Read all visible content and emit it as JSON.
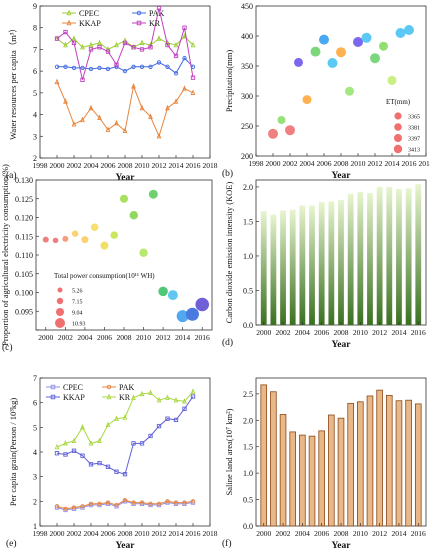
{
  "chart_data": [
    {
      "id": "a",
      "type": "line",
      "panel_label": "(a)",
      "xlabel": "Year",
      "ylabel": "Water resources per capita（m³）",
      "xlim": [
        1998,
        2018
      ],
      "ylim": [
        2,
        9
      ],
      "xticks": [
        1998,
        2000,
        2002,
        2004,
        2006,
        2008,
        2010,
        2012,
        2014,
        2016,
        2018
      ],
      "yticks": [
        2,
        3,
        4,
        5,
        6,
        7,
        8,
        9
      ],
      "legend_position": "top",
      "x": [
        2000,
        2001,
        2002,
        2003,
        2004,
        2005,
        2006,
        2007,
        2008,
        2009,
        2010,
        2011,
        2012,
        2013,
        2014,
        2015,
        2016
      ],
      "series": [
        {
          "name": "CPEC",
          "color": "#9ACD32",
          "marker": "triangle",
          "values": [
            7.5,
            7.2,
            7.5,
            7.1,
            7.2,
            7.3,
            7.0,
            7.2,
            7.4,
            7.1,
            7.3,
            7.2,
            7.5,
            7.3,
            7.2,
            7.6,
            7.2
          ]
        },
        {
          "name": "PAK",
          "color": "#4169E1",
          "marker": "circle",
          "values": [
            6.2,
            6.2,
            6.15,
            6.15,
            6.1,
            6.15,
            6.1,
            6.2,
            6.0,
            6.2,
            6.2,
            6.2,
            6.4,
            6.2,
            5.9,
            6.6,
            6.2
          ]
        },
        {
          "name": "KKAP",
          "color": "#E8853D",
          "marker": "triangle",
          "values": [
            5.5,
            4.6,
            3.55,
            3.75,
            4.3,
            3.85,
            3.3,
            3.6,
            3.25,
            5.3,
            4.3,
            3.9,
            3.0,
            4.3,
            4.6,
            5.2,
            5.0
          ]
        },
        {
          "name": "KR",
          "color": "#C040C0",
          "marker": "square",
          "values": [
            7.5,
            7.8,
            7.3,
            5.6,
            7.0,
            7.1,
            6.9,
            6.3,
            7.3,
            7.1,
            7.0,
            7.1,
            8.9,
            7.2,
            6.7,
            8.0,
            5.7
          ]
        }
      ]
    },
    {
      "id": "b",
      "type": "scatter",
      "panel_label": "(b)",
      "xlabel": "Year",
      "ylabel": "Precipitation(mm)",
      "xlim": [
        1998,
        2018
      ],
      "ylim": [
        200,
        450
      ],
      "xticks": [
        1998,
        2000,
        2002,
        2004,
        2006,
        2008,
        2010,
        2012,
        2014,
        2016,
        2018
      ],
      "yticks": [
        200,
        250,
        300,
        350,
        400,
        450
      ],
      "size_legend_title": "ET(mm)",
      "size_legend": [
        "3365",
        "3381",
        "3397",
        "3413"
      ],
      "points": [
        {
          "x": 2000,
          "y": 237,
          "color": "#F08080"
        },
        {
          "x": 2001,
          "y": 260,
          "color": "#98E07A"
        },
        {
          "x": 2002,
          "y": 243,
          "color": "#F08080"
        },
        {
          "x": 2003,
          "y": 356,
          "color": "#7B68EE"
        },
        {
          "x": 2004,
          "y": 294,
          "color": "#FFB050"
        },
        {
          "x": 2005,
          "y": 374,
          "color": "#7CD67C"
        },
        {
          "x": 2006,
          "y": 394,
          "color": "#4AA8F0"
        },
        {
          "x": 2007,
          "y": 355,
          "color": "#5BC8F5"
        },
        {
          "x": 2008,
          "y": 373,
          "color": "#FFB050"
        },
        {
          "x": 2009,
          "y": 308,
          "color": "#A0E880"
        },
        {
          "x": 2010,
          "y": 390,
          "color": "#7B68EE"
        },
        {
          "x": 2011,
          "y": 397,
          "color": "#5BC8F5"
        },
        {
          "x": 2012,
          "y": 363,
          "color": "#7CD67C"
        },
        {
          "x": 2013,
          "y": 383,
          "color": "#90E070"
        },
        {
          "x": 2014,
          "y": 326,
          "color": "#C8F080"
        },
        {
          "x": 2015,
          "y": 405,
          "color": "#5BC8F5"
        },
        {
          "x": 2016,
          "y": 410,
          "color": "#5BC8F5"
        }
      ]
    },
    {
      "id": "c",
      "type": "scatter",
      "panel_label": "(c)",
      "xlabel": "",
      "ylabel": "Proportion of agricultural electricity consumption(%)",
      "xlim": [
        1999,
        2017
      ],
      "ylim": [
        0.09,
        0.13
      ],
      "xticks": [
        2000,
        2002,
        2004,
        2006,
        2008,
        2010,
        2012,
        2014,
        2016
      ],
      "yticks": [
        0.09,
        0.095,
        0.1,
        0.105,
        0.11,
        0.115,
        0.12,
        0.125,
        0.13
      ],
      "ytick_labels": [
        "",
        "0.095",
        "0.100",
        "0.105",
        "0.110",
        "0.115",
        "0.120",
        "0.125",
        "0.130"
      ],
      "size_legend_title": "Total power consumption(10¹¹ WH)",
      "size_legend": [
        "5.26",
        "7.15",
        "9.04",
        "10.93"
      ],
      "points": [
        {
          "x": 2000,
          "y": 0.1141,
          "color": "#F08080"
        },
        {
          "x": 2001,
          "y": 0.1139,
          "color": "#F08080"
        },
        {
          "x": 2002,
          "y": 0.1143,
          "color": "#F4A080"
        },
        {
          "x": 2003,
          "y": 0.1157,
          "color": "#FFD070"
        },
        {
          "x": 2004,
          "y": 0.1141,
          "color": "#FFD070"
        },
        {
          "x": 2005,
          "y": 0.1174,
          "color": "#F8E070"
        },
        {
          "x": 2006,
          "y": 0.1125,
          "color": "#F0E068"
        },
        {
          "x": 2007,
          "y": 0.1153,
          "color": "#C8E860"
        },
        {
          "x": 2008,
          "y": 0.125,
          "color": "#A8E060"
        },
        {
          "x": 2009,
          "y": 0.1206,
          "color": "#90D860"
        },
        {
          "x": 2010,
          "y": 0.1106,
          "color": "#B8E870"
        },
        {
          "x": 2011,
          "y": 0.1262,
          "color": "#70D070"
        },
        {
          "x": 2012,
          "y": 0.1003,
          "color": "#50C878"
        },
        {
          "x": 2013,
          "y": 0.0993,
          "color": "#60C8F0"
        },
        {
          "x": 2014,
          "y": 0.0937,
          "color": "#50A8F0"
        },
        {
          "x": 2015,
          "y": 0.0942,
          "color": "#4A7AE0"
        },
        {
          "x": 2016,
          "y": 0.0968,
          "color": "#7060D8"
        }
      ]
    },
    {
      "id": "d",
      "type": "bar",
      "panel_label": "(d)",
      "xlabel": "Year",
      "ylabel": "Carbon dioxide emission intensity (KOE)",
      "ylim": [
        0,
        2.1
      ],
      "yticks": [
        0,
        0.5,
        1.0,
        1.5,
        2.0
      ],
      "ytick_labels": [
        "0.0",
        "0.5",
        "1.0",
        "1.5",
        "2.0"
      ],
      "xtick_labels": [
        "2000",
        "2002",
        "2004",
        "2006",
        "2008",
        "2010",
        "2012",
        "2014",
        "2016"
      ],
      "categories": [
        "2000",
        "2001",
        "2002",
        "2003",
        "2004",
        "2005",
        "2006",
        "2007",
        "2008",
        "2009",
        "2010",
        "2011",
        "2012",
        "2013",
        "2014",
        "2015",
        "2016"
      ],
      "values": [
        1.65,
        1.6,
        1.66,
        1.67,
        1.73,
        1.73,
        1.78,
        1.79,
        1.81,
        1.9,
        1.93,
        1.91,
        2.0,
        2.0,
        1.97,
        1.98,
        2.04
      ],
      "bar_color_top": "#E8F5D0",
      "bar_color_bottom": "#3A7020"
    },
    {
      "id": "e",
      "type": "line",
      "panel_label": "(e)",
      "xlabel": "Year",
      "ylabel": "Per capita grain(Person / 10³kg)",
      "xlim": [
        1998,
        2018
      ],
      "ylim": [
        1,
        7
      ],
      "xticks": [
        1998,
        2000,
        2002,
        2004,
        2006,
        2008,
        2010,
        2012,
        2014,
        2016,
        2018
      ],
      "yticks": [
        1,
        2,
        3,
        4,
        5,
        6,
        7
      ],
      "legend_position": "top-left",
      "x": [
        2000,
        2001,
        2002,
        2003,
        2004,
        2005,
        2006,
        2007,
        2008,
        2009,
        2010,
        2011,
        2012,
        2013,
        2014,
        2015,
        2016
      ],
      "series": [
        {
          "name": "CPEC",
          "color": "#9090E8",
          "marker": "square",
          "values": [
            1.75,
            1.65,
            1.7,
            1.75,
            1.85,
            1.85,
            1.9,
            1.8,
            2.0,
            1.9,
            1.9,
            1.85,
            1.85,
            1.95,
            1.9,
            1.9,
            1.95
          ]
        },
        {
          "name": "PAK",
          "color": "#E8853D",
          "marker": "circle",
          "values": [
            1.8,
            1.7,
            1.75,
            1.8,
            1.9,
            1.9,
            1.95,
            1.85,
            2.05,
            1.95,
            1.95,
            1.9,
            1.9,
            2.0,
            1.95,
            1.95,
            2.0
          ]
        },
        {
          "name": "KKAP",
          "color": "#6060D8",
          "marker": "square",
          "values": [
            3.95,
            3.9,
            4.05,
            3.85,
            3.5,
            3.55,
            3.4,
            3.2,
            3.1,
            4.35,
            4.35,
            4.65,
            5.05,
            5.35,
            5.3,
            5.75,
            6.25
          ]
        },
        {
          "name": "KR",
          "color": "#A8D840",
          "marker": "triangle",
          "values": [
            4.2,
            4.35,
            4.45,
            5.0,
            4.35,
            4.45,
            5.1,
            5.35,
            5.4,
            6.2,
            6.35,
            6.4,
            6.1,
            6.2,
            6.1,
            6.05,
            6.45
          ]
        }
      ]
    },
    {
      "id": "f",
      "type": "bar",
      "panel_label": "(f)",
      "xlabel": "Year",
      "ylabel": "Saline land area(10⁷ km²)",
      "ylim": [
        0,
        2.8
      ],
      "yticks": [
        0.0,
        0.5,
        1.0,
        1.5,
        2.0,
        2.5
      ],
      "ytick_labels": [
        "0.0",
        "0.5",
        "1.0",
        "1.5",
        "2.0",
        "2.5"
      ],
      "xtick_labels": [
        "2000",
        "2002",
        "2004",
        "2006",
        "2008",
        "2010",
        "2012",
        "2014",
        "2016"
      ],
      "categories": [
        "2000",
        "2001",
        "2002",
        "2003",
        "2004",
        "2005",
        "2006",
        "2007",
        "2008",
        "2009",
        "2010",
        "2011",
        "2012",
        "2013",
        "2014",
        "2015",
        "2016"
      ],
      "values": [
        2.67,
        2.54,
        2.11,
        1.78,
        1.72,
        1.7,
        1.8,
        2.1,
        2.04,
        2.32,
        2.35,
        2.46,
        2.57,
        2.47,
        2.37,
        2.38,
        2.31
      ],
      "bar_color": "#E8B888",
      "bar_edge": "#8B4A1A"
    }
  ]
}
